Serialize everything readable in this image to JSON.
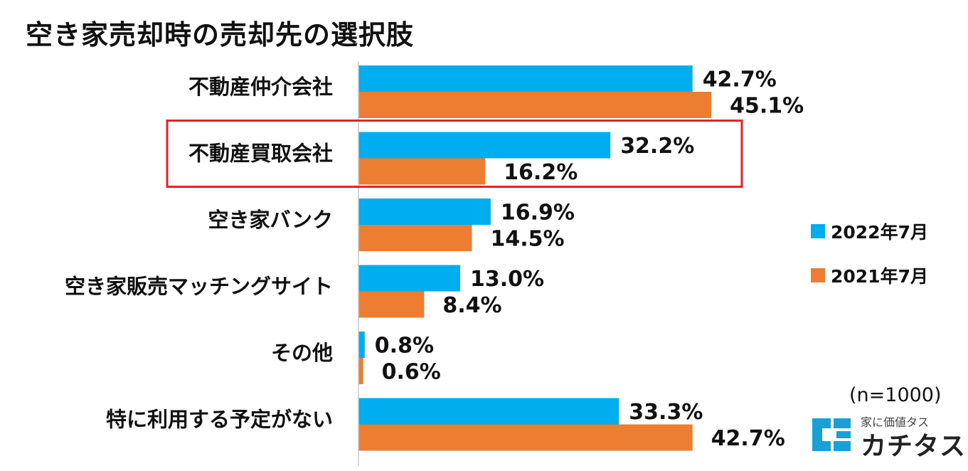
{
  "header": {
    "title": "空き家売却時の売却先の選択肢"
  },
  "colors": {
    "series_2022": "#00adef",
    "series_2021": "#ed7d31",
    "highlight": "#e32229"
  },
  "legend": {
    "items": [
      "2022年7月",
      "2021年7月"
    ]
  },
  "note": "(n=1000)",
  "logo": {
    "tagline": "家に価値タス",
    "name": "カチタス",
    "icon": "kachitas-logo-icon"
  },
  "chart_data": {
    "type": "bar",
    "orientation": "horizontal",
    "categories": [
      "不動産仲介会社",
      "不動産買取会社",
      "空き家バンク",
      "空き家販売マッチングサイト",
      "その他",
      "特に利用する予定がない"
    ],
    "series": [
      {
        "name": "2022年7月",
        "values": [
          42.7,
          32.2,
          16.9,
          13.0,
          0.8,
          33.3
        ]
      },
      {
        "name": "2021年7月",
        "values": [
          45.1,
          16.2,
          14.5,
          8.4,
          0.6,
          42.7
        ]
      }
    ],
    "value_labels": [
      [
        "42.7%",
        "32.2%",
        "16.9%",
        "13.0%",
        "0.8%",
        "33.3%"
      ],
      [
        "45.1%",
        "16.2%",
        "14.5%",
        "8.4%",
        "0.6%",
        "42.7%"
      ]
    ],
    "highlighted_category": "不動産買取会社",
    "xlim": [
      0,
      50
    ],
    "grid": false,
    "legend_position": "right"
  }
}
